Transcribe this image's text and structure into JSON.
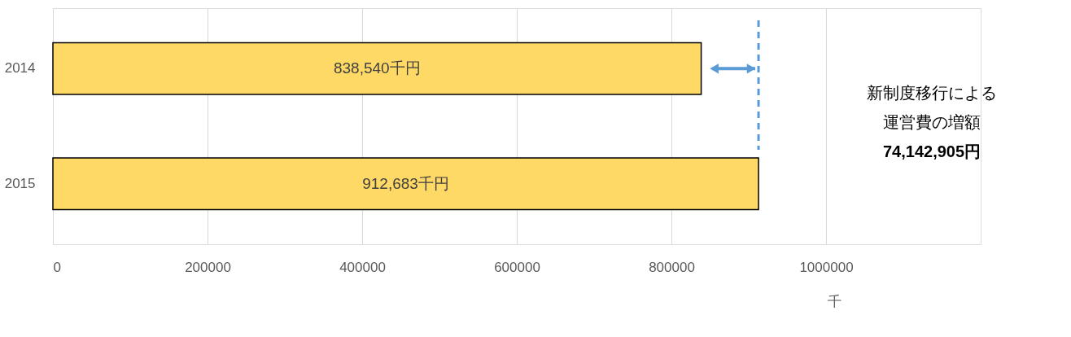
{
  "chart_data": {
    "type": "bar",
    "orientation": "horizontal",
    "categories": [
      "2014",
      "2015"
    ],
    "values": [
      838540,
      912683
    ],
    "value_labels": [
      "838,540千円",
      "912,683千円"
    ],
    "color": "#ffd966",
    "xlim": [
      0,
      1200000
    ],
    "xticks": [
      0,
      200000,
      400000,
      600000,
      800000,
      1000000
    ],
    "xlabel": "千",
    "grid": "x",
    "ref_lines": [
      {
        "axis": "x",
        "value": 912683,
        "label": null,
        "color": "#5b9bd5",
        "line_style": "dashed"
      }
    ],
    "annotations": [
      "新制度移行による",
      "運営費の増額",
      "74,142,905円"
    ]
  }
}
